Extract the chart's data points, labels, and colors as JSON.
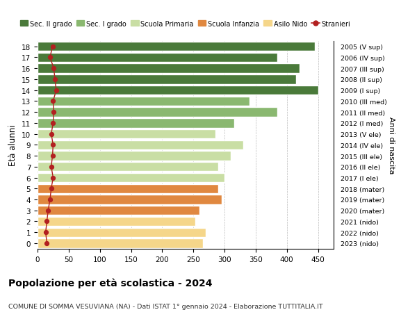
{
  "ages": [
    0,
    1,
    2,
    3,
    4,
    5,
    6,
    7,
    8,
    9,
    10,
    11,
    12,
    13,
    14,
    15,
    16,
    17,
    18
  ],
  "bar_values": [
    265,
    270,
    253,
    260,
    295,
    290,
    300,
    290,
    310,
    330,
    285,
    315,
    385,
    340,
    450,
    415,
    420,
    385,
    445
  ],
  "stranieri": [
    15,
    13,
    15,
    17,
    20,
    22,
    25,
    22,
    24,
    25,
    22,
    25,
    26,
    25,
    30,
    28,
    26,
    20,
    24
  ],
  "right_labels": [
    "2023 (nido)",
    "2022 (nido)",
    "2021 (nido)",
    "2020 (mater)",
    "2019 (mater)",
    "2018 (mater)",
    "2017 (I ele)",
    "2016 (II ele)",
    "2015 (III ele)",
    "2014 (IV ele)",
    "2013 (V ele)",
    "2012 (I med)",
    "2011 (II med)",
    "2010 (III med)",
    "2009 (I sup)",
    "2008 (II sup)",
    "2007 (III sup)",
    "2006 (IV sup)",
    "2005 (V sup)"
  ],
  "bar_colors": [
    "#f5d68a",
    "#f5d68a",
    "#f5d68a",
    "#e08840",
    "#e08840",
    "#e08840",
    "#c9dea4",
    "#c9dea4",
    "#c9dea4",
    "#c9dea4",
    "#c9dea4",
    "#8ab870",
    "#8ab870",
    "#8ab870",
    "#4a7a3a",
    "#4a7a3a",
    "#4a7a3a",
    "#4a7a3a",
    "#4a7a3a"
  ],
  "legend_labels": [
    "Sec. II grado",
    "Sec. I grado",
    "Scuola Primaria",
    "Scuola Infanzia",
    "Asilo Nido",
    "Stranieri"
  ],
  "legend_colors": [
    "#4a7a3a",
    "#8ab870",
    "#c9dea4",
    "#e08840",
    "#f5d68a",
    "#b22020"
  ],
  "stranieri_color": "#b22020",
  "title": "Popolazione per età scolastica - 2024",
  "subtitle": "COMUNE DI SOMMA VESUVIANA (NA) - Dati ISTAT 1° gennaio 2024 - Elaborazione TUTTITALIA.IT",
  "ylabel": "Età alunni",
  "right_ylabel": "Anni di nascita",
  "xlabel_ticks": [
    0,
    50,
    100,
    150,
    200,
    250,
    300,
    350,
    400,
    450
  ],
  "xlim": [
    0,
    475
  ],
  "background_color": "#ffffff",
  "grid_color": "#bbbbbb"
}
